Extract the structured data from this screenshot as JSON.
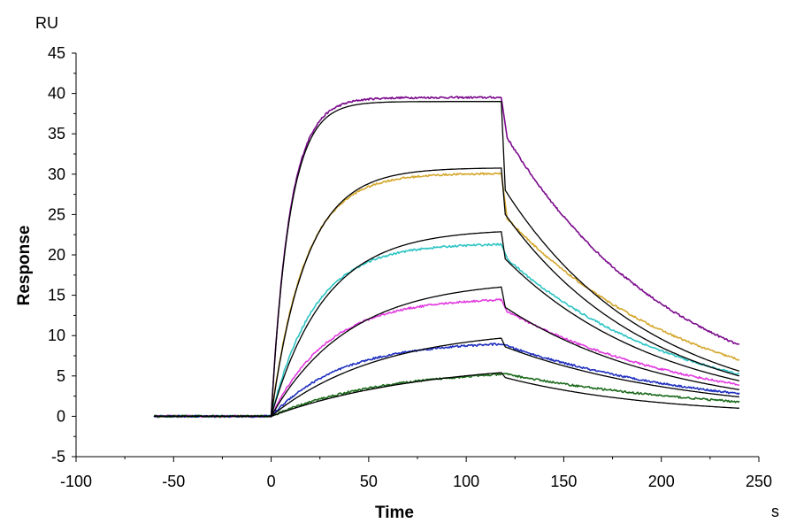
{
  "chart_data": {
    "type": "line",
    "xlabel": "Time",
    "ylabel": "Response",
    "x_unit": "s",
    "y_unit": "RU",
    "xlim": [
      -100,
      250
    ],
    "ylim": [
      -5,
      45
    ],
    "x_ticks": [
      -100,
      -50,
      0,
      50,
      100,
      150,
      200,
      250
    ],
    "y_ticks": [
      -5,
      0,
      5,
      10,
      15,
      20,
      25,
      30,
      35,
      40,
      45
    ],
    "x_tick_labels": [
      "-100",
      "-50",
      "0",
      "50",
      "100",
      "150",
      "200",
      "250"
    ],
    "y_tick_labels": [
      "-5",
      "0",
      "5",
      "10",
      "15",
      "20",
      "25",
      "30",
      "35",
      "40",
      "45"
    ],
    "grid": false,
    "legend": "none",
    "baseline_x_start": -60,
    "injection_end_x": 118,
    "x_end": 240,
    "series": [
      {
        "color": "#7b0a8c",
        "kind": "measured",
        "assoc_plateau": 39.5,
        "assoc_rate": 0.105,
        "dissoc_start": 34.5,
        "dissoc_end": 8.8,
        "dissoc_from_x": 121
      },
      {
        "color": "#d4a72c",
        "kind": "measured",
        "assoc_plateau": 30.1,
        "assoc_rate": 0.058,
        "dissoc_start": 24.5,
        "dissoc_end": 7.0,
        "dissoc_from_x": 121
      },
      {
        "color": "#2ec4c4",
        "kind": "measured",
        "assoc_plateau": 21.4,
        "assoc_rate": 0.045,
        "dissoc_start": 19.5,
        "dissoc_end": 5.2,
        "dissoc_from_x": 121
      },
      {
        "color": "#e23be0",
        "kind": "measured",
        "assoc_plateau": 14.7,
        "assoc_rate": 0.034,
        "dissoc_start": 13.0,
        "dissoc_end": 3.9,
        "dissoc_from_x": 121
      },
      {
        "color": "#1f2fbf",
        "kind": "measured",
        "assoc_plateau": 9.3,
        "assoc_rate": 0.028,
        "dissoc_start": 8.7,
        "dissoc_end": 2.8,
        "dissoc_from_x": 121
      },
      {
        "color": "#1d6b1d",
        "kind": "measured",
        "assoc_plateau": 5.9,
        "assoc_rate": 0.018,
        "dissoc_start": 5.2,
        "dissoc_end": 1.8,
        "dissoc_from_x": 121
      },
      {
        "color": "#000000",
        "kind": "fit",
        "assoc_plateau": 39.0,
        "assoc_rate": 0.105,
        "dissoc_start": 28.0,
        "dissoc_end": 5.6,
        "dissoc_from_x": 120
      },
      {
        "color": "#000000",
        "kind": "fit",
        "assoc_plateau": 30.8,
        "assoc_rate": 0.055,
        "dissoc_start": 25.0,
        "dissoc_end": 5.0,
        "dissoc_from_x": 120
      },
      {
        "color": "#000000",
        "kind": "fit",
        "assoc_plateau": 23.2,
        "assoc_rate": 0.036,
        "dissoc_start": 19.5,
        "dissoc_end": 4.4,
        "dissoc_from_x": 120
      },
      {
        "color": "#000000",
        "kind": "fit",
        "assoc_plateau": 16.9,
        "assoc_rate": 0.025,
        "dissoc_start": 13.5,
        "dissoc_end": 3.3,
        "dissoc_from_x": 120
      },
      {
        "color": "#000000",
        "kind": "fit",
        "assoc_plateau": 11.0,
        "assoc_rate": 0.018,
        "dissoc_start": 8.6,
        "dissoc_end": 2.4,
        "dissoc_from_x": 120
      },
      {
        "color": "#000000",
        "kind": "fit",
        "assoc_plateau": 6.9,
        "assoc_rate": 0.013,
        "dissoc_start": 4.8,
        "dissoc_end": 1.0,
        "dissoc_from_x": 120
      }
    ]
  }
}
